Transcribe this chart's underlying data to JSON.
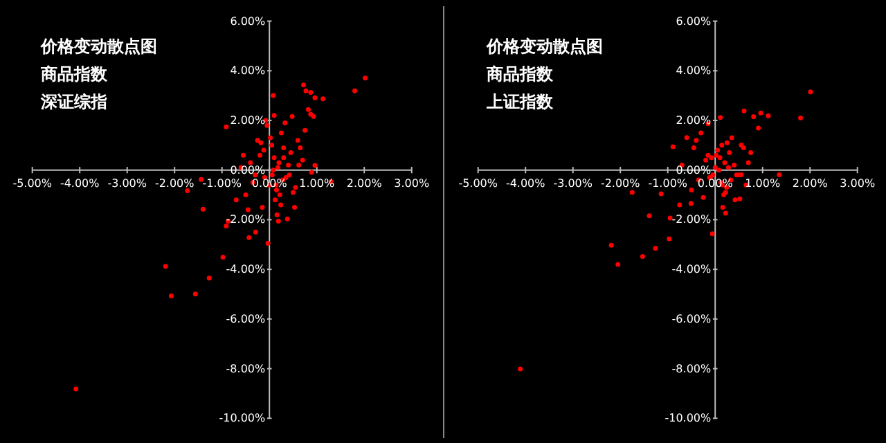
{
  "chart_data": [
    {
      "type": "scatter",
      "title": "价格变动散点图",
      "subtitle": "商品指数",
      "annotations": [
        "深证综指"
      ],
      "xlim": [
        -5,
        3
      ],
      "ylim": [
        -10,
        6
      ],
      "xticks": [
        {
          "value": -5,
          "label": "-5.00%"
        },
        {
          "value": -4,
          "label": "-4.00%"
        },
        {
          "value": -3,
          "label": "-3.00%"
        },
        {
          "value": -2,
          "label": "-2.00%"
        },
        {
          "value": -1,
          "label": "-1.00%"
        },
        {
          "value": 0,
          "label": "0.00%"
        },
        {
          "value": 1,
          "label": "1.00%"
        },
        {
          "value": 2,
          "label": "2.00%"
        },
        {
          "value": 3,
          "label": "3.00%"
        }
      ],
      "yticks": [
        {
          "value": 6,
          "label": "6.00%"
        },
        {
          "value": 4,
          "label": "4.00%"
        },
        {
          "value": 2,
          "label": "2.00%"
        },
        {
          "value": 0,
          "label": "0.00%"
        },
        {
          "value": -2,
          "label": "-2.00%"
        },
        {
          "value": -4,
          "label": "-4.00%"
        },
        {
          "value": -6,
          "label": "-6.00%"
        },
        {
          "value": -8,
          "label": "-8.00%"
        },
        {
          "value": -10,
          "label": "-10.00%"
        }
      ],
      "grid": false,
      "marker": "circle",
      "series": [
        {
          "color": "#ff0000",
          "x": [
            2.02,
            1.8,
            0.72,
            0.77,
            0.96,
            1.13,
            0.87,
            0.08,
            -0.91,
            -2.19,
            -2.07,
            -1.56,
            -1.27,
            -0.98,
            -1.4,
            -1.73,
            -1.44,
            -4.08,
            -0.03,
            -0.43,
            -0.29,
            -0.91,
            -0.87,
            0.82,
            0.87,
            0.93,
            0.96,
            0.89,
            1.3,
            0.48,
            0.38,
            0.19,
            0.53,
            0.1,
            0.2,
            0.05,
            -0.1,
            0.15,
            0.3,
            0.25,
            -0.2,
            -0.35,
            0.4,
            0.6,
            0.7,
            -0.5,
            -0.6,
            0.0,
            0.12,
            0.22,
            -0.05,
            0.35,
            0.45,
            -0.15,
            -0.25,
            0.55,
            0.65,
            0.75,
            -0.4,
            -0.7,
            0.18,
            0.08,
            0.28,
            -0.12,
            0.02,
            0.14,
            0.33,
            -0.3,
            0.5,
            -0.55,
            0.62,
            0.24,
            0.1,
            -0.08,
            0.3,
            0.42,
            -0.45,
            -0.18,
            0.16,
            0.06
          ],
          "values": [
            3.71,
            3.19,
            3.43,
            3.19,
            2.91,
            2.87,
            3.13,
            3.0,
            1.74,
            -3.88,
            -5.07,
            -4.99,
            -4.35,
            -3.51,
            -1.58,
            -0.83,
            -0.38,
            -8.82,
            -2.95,
            -2.72,
            -2.5,
            -2.25,
            -2.06,
            2.44,
            2.25,
            2.16,
            0.19,
            -0.09,
            -0.47,
            2.16,
            -1.97,
            -2.06,
            -1.5,
            0.5,
            0.3,
            1.0,
            -0.3,
            -0.8,
            0.9,
            1.5,
            0.6,
            -0.5,
            0.2,
            1.2,
            0.4,
            -1.0,
            0.1,
            -0.6,
            -1.2,
            -1.0,
            1.8,
            -0.3,
            0.7,
            -1.5,
            1.2,
            -0.7,
            0.9,
            1.6,
            0.3,
            -1.2,
            0.1,
            0.0,
            -0.4,
            0.8,
            1.3,
            -0.6,
            1.9,
            -0.2,
            -0.9,
            0.6,
            0.2,
            -1.4,
            2.2,
            2.0,
            0.5,
            -0.2,
            -1.6,
            1.1,
            -1.8,
            -0.2
          ]
        }
      ]
    },
    {
      "type": "scatter",
      "title": "价格变动散点图",
      "subtitle": "商品指数",
      "annotations": [
        "上证指数"
      ],
      "xlim": [
        -5,
        3
      ],
      "ylim": [
        -10,
        6
      ],
      "xticks": [
        {
          "value": -5,
          "label": "-5.00%"
        },
        {
          "value": -4,
          "label": "-4.00%"
        },
        {
          "value": -3,
          "label": "-3.00%"
        },
        {
          "value": -2,
          "label": "-2.00%"
        },
        {
          "value": -1,
          "label": "-1.00%"
        },
        {
          "value": 0,
          "label": "0.00%"
        },
        {
          "value": 1,
          "label": "1.00%"
        },
        {
          "value": 2,
          "label": "2.00%"
        },
        {
          "value": 3,
          "label": "3.00%"
        }
      ],
      "yticks": [
        {
          "value": 6,
          "label": "6.00%"
        },
        {
          "value": 4,
          "label": "4.00%"
        },
        {
          "value": 2,
          "label": "2.00%"
        },
        {
          "value": 0,
          "label": "0.00%"
        },
        {
          "value": -2,
          "label": "-2.00%"
        },
        {
          "value": -4,
          "label": "-4.00%"
        },
        {
          "value": -6,
          "label": "-6.00%"
        },
        {
          "value": -8,
          "label": "-8.00%"
        },
        {
          "value": -10,
          "label": "-10.00%"
        }
      ],
      "grid": false,
      "marker": "circle",
      "series": [
        {
          "color": "#ff0000",
          "x": [
            2.01,
            1.8,
            1.35,
            0.61,
            0.96,
            1.12,
            0.81,
            0.91,
            -0.15,
            0.11,
            -0.89,
            -4.11,
            -2.19,
            -2.05,
            -1.53,
            -1.26,
            -0.97,
            -1.39,
            -1.14,
            -1.75,
            -0.06,
            -0.95,
            -0.75,
            -0.51,
            0.22,
            0.52,
            0.55,
            -0.6,
            0.1,
            0.2,
            0.05,
            -0.1,
            0.15,
            0.3,
            0.25,
            -0.2,
            -0.35,
            0.4,
            0.6,
            0.7,
            -0.5,
            0.0,
            0.12,
            0.22,
            -0.05,
            0.35,
            0.45,
            -0.15,
            -0.25,
            0.55,
            0.65,
            0.75,
            -0.4,
            -0.7,
            0.18,
            0.08,
            0.28,
            -0.12,
            0.02,
            0.14,
            0.33,
            -0.3,
            0.5,
            0.24,
            -0.08,
            0.42,
            -0.45,
            0.16
          ],
          "values": [
            3.15,
            2.1,
            -0.19,
            2.38,
            2.3,
            2.19,
            2.15,
            1.69,
            1.87,
            2.12,
            0.94,
            -8.01,
            -3.03,
            -3.8,
            -3.48,
            -3.15,
            -2.77,
            -1.84,
            -0.96,
            -0.9,
            -2.57,
            -1.93,
            -1.4,
            -1.35,
            -1.74,
            -1.16,
            -0.19,
            1.31,
            0.5,
            0.3,
            0.8,
            -0.3,
            -0.6,
            0.7,
            1.1,
            0.4,
            -0.4,
            0.2,
            0.9,
            0.3,
            -0.8,
            0.1,
            -0.5,
            -0.9,
            -0.2,
            1.3,
            -0.2,
            0.6,
            -1.1,
            1.0,
            -0.6,
            0.7,
            1.2,
            0.2,
            -1.0,
            0.0,
            0.1,
            -0.3,
            0.6,
            1.0,
            -0.4,
            1.5,
            -0.2,
            -0.7,
            0.5,
            -1.2,
            0.9,
            -1.5
          ]
        }
      ]
    }
  ]
}
